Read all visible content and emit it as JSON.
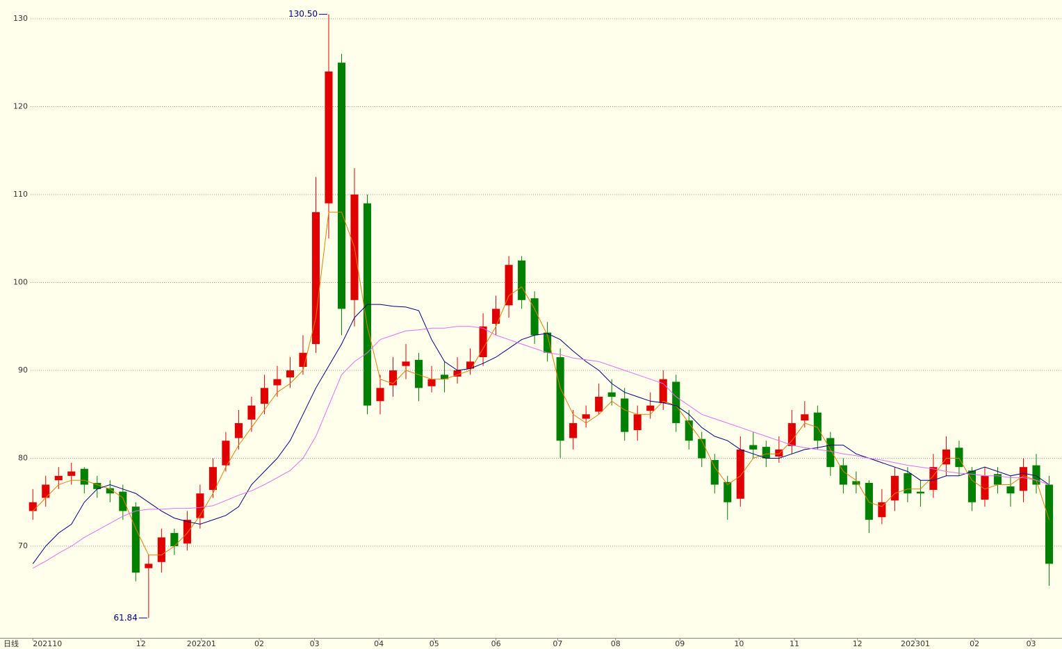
{
  "chart_data": {
    "type": "candlestick",
    "period_label": "日线",
    "xlim": [
      -0.5,
      80
    ],
    "ylim": [
      59.57,
      132.13
    ],
    "yticks": [
      70,
      80,
      90,
      100,
      110,
      120,
      130
    ],
    "grid": true,
    "up_color": "#e00000",
    "down_color": "#008000",
    "xticks": [
      {
        "value": 0,
        "label": "202110"
      },
      {
        "value": 8.4,
        "label": "12"
      },
      {
        "value": 13.1,
        "label": "202201"
      },
      {
        "value": 17.6,
        "label": "02"
      },
      {
        "value": 21.9,
        "label": "03"
      },
      {
        "value": 26.9,
        "label": "04"
      },
      {
        "value": 31.2,
        "label": "05"
      },
      {
        "value": 36,
        "label": "06"
      },
      {
        "value": 40.8,
        "label": "07"
      },
      {
        "value": 45.3,
        "label": "08"
      },
      {
        "value": 50.3,
        "label": "09"
      },
      {
        "value": 54.9,
        "label": "10"
      },
      {
        "value": 59.2,
        "label": "11"
      },
      {
        "value": 64.1,
        "label": "12"
      },
      {
        "value": 68.6,
        "label": "202301"
      },
      {
        "value": 73.2,
        "label": "02"
      },
      {
        "value": 77.6,
        "label": "03"
      }
    ],
    "open": [
      74,
      75.5,
      77.5,
      78,
      78.8,
      77.2,
      76.6,
      76.2,
      74.5,
      67.5,
      68.2,
      71.5,
      70.3,
      73.2,
      76.4,
      79.2,
      82.3,
      84.4,
      86.2,
      88.3,
      89.2,
      90.4,
      93,
      109,
      125,
      98,
      109,
      86.5,
      88.3,
      90.5,
      91.2,
      88.2,
      89.5,
      89.3,
      90.2,
      91.5,
      95.3,
      97.4,
      102.5,
      98.2,
      94.3,
      91.5,
      82.3,
      84.5,
      85.3,
      87.5,
      86.8,
      83.2,
      85.4,
      86.3,
      88.7,
      84.3,
      82.2,
      79.8,
      77.3,
      75.4,
      81.5,
      81.3,
      80.2,
      81.4,
      84.3,
      85.2,
      82.3,
      79.2,
      77.4,
      77.2,
      73.3,
      75.2,
      78.3,
      76.2,
      76.4,
      79.3,
      81.2,
      78.6,
      75.3,
      78.2,
      76.8,
      76.3,
      79.2,
      77
    ],
    "high": [
      76.5,
      78,
      79,
      79.5,
      79,
      78,
      77.5,
      77,
      75,
      69,
      72,
      72,
      74,
      77,
      80,
      83,
      85.5,
      87,
      89.5,
      90.5,
      91.5,
      94,
      112,
      130.5,
      126,
      113,
      110,
      89.5,
      91.5,
      93,
      92,
      90.5,
      91,
      91.5,
      92.5,
      96.5,
      98.5,
      103,
      103,
      99,
      95.5,
      92.5,
      85.5,
      86,
      88.5,
      89,
      88,
      86,
      87.5,
      90,
      89.5,
      85.5,
      83,
      80.5,
      78,
      82.5,
      83,
      82,
      82.5,
      85.5,
      86.5,
      86,
      83,
      80,
      78.5,
      77.5,
      76.5,
      79,
      79,
      77.5,
      80.5,
      82.5,
      82,
      79,
      79,
      79,
      78,
      80,
      80.5,
      78
    ],
    "low": [
      73,
      74.5,
      76.5,
      77,
      76,
      75.5,
      75,
      73,
      66,
      61.84,
      67,
      69,
      69.5,
      72,
      75.5,
      78.5,
      81,
      83,
      85,
      87,
      88,
      89.5,
      92,
      105,
      94,
      95,
      85,
      85,
      87,
      89,
      86.5,
      87.5,
      87.5,
      88.5,
      89.5,
      90.5,
      94,
      96,
      97,
      93,
      91,
      80,
      81,
      83.5,
      85,
      86,
      82,
      82,
      84.5,
      85.5,
      83,
      81,
      79,
      76,
      73,
      74.5,
      80,
      79,
      79.5,
      80.5,
      83.5,
      81,
      78,
      76,
      76,
      71.5,
      72.5,
      74,
      75,
      74.5,
      75.5,
      78,
      78,
      74,
      74.5,
      76,
      74.5,
      75,
      76,
      65.5
    ],
    "close": [
      75,
      77,
      78,
      78.5,
      77,
      76.5,
      76,
      74,
      67,
      68,
      71,
      70,
      73,
      76,
      79,
      82,
      84,
      86,
      88,
      89,
      90,
      92,
      108,
      124,
      97,
      110,
      86,
      88,
      90,
      91,
      88,
      89,
      89,
      90,
      91,
      95,
      97,
      102,
      98,
      94,
      92,
      82,
      84,
      85,
      87,
      87,
      83,
      85,
      86,
      89,
      84,
      82,
      80,
      77,
      75,
      81,
      81,
      80,
      81,
      84,
      85,
      82,
      79,
      77,
      77,
      73,
      75,
      78,
      76,
      76,
      79,
      81,
      79,
      75,
      78,
      77,
      76,
      79,
      77,
      68
    ],
    "lines": [
      {
        "color": "#e08000",
        "values": [
          74,
          75.5,
          77,
          77.5,
          77.5,
          77,
          76.5,
          75.5,
          72,
          69,
          69,
          70,
          71.5,
          73.5,
          76,
          79,
          81.5,
          83.5,
          85.5,
          87.5,
          88.5,
          90,
          96,
          108,
          108,
          104,
          95,
          89,
          88.5,
          90,
          89.5,
          89,
          89,
          89.5,
          90,
          92.5,
          95,
          98.5,
          99.5,
          97,
          94,
          88,
          85,
          84,
          85,
          86.5,
          85.5,
          85,
          85,
          86.5,
          86,
          84,
          82,
          79,
          77,
          78,
          80,
          80.5,
          80.5,
          82,
          84,
          83.5,
          81,
          78.5,
          77.5,
          75,
          74.5,
          76,
          76.5,
          76.5,
          78,
          80,
          80,
          77.5,
          76.5,
          77,
          77,
          78,
          77.5,
          73
        ]
      },
      {
        "color": "#000080",
        "values": [
          68,
          70,
          71.5,
          72.5,
          75,
          76.5,
          77,
          76.5,
          76,
          75,
          74,
          73.2,
          72.8,
          72.5,
          73,
          73.5,
          74.5,
          77,
          78.5,
          80,
          82,
          85,
          88,
          90.5,
          93,
          96,
          97.5,
          97.5,
          97.3,
          97.2,
          96.8,
          93.5,
          91,
          90,
          90.2,
          90.8,
          91.5,
          92.5,
          93.5,
          94,
          94.2,
          93.5,
          92.2,
          91,
          90,
          88.5,
          87.5,
          87,
          86.5,
          86.3,
          86,
          85,
          83.5,
          82.5,
          82,
          81,
          80.5,
          80,
          80,
          80.5,
          81,
          81.2,
          81.5,
          81.5,
          80.5,
          80,
          79.5,
          79,
          78.5,
          77.5,
          77.5,
          78,
          78,
          78.5,
          79,
          78.5,
          78,
          78.3,
          78,
          77
        ]
      },
      {
        "color": "#e070f0",
        "values": [
          67.5,
          68.3,
          69.2,
          70,
          71,
          71.8,
          72.6,
          73.4,
          74,
          74.2,
          74.2,
          74.3,
          74.3,
          74.4,
          74.6,
          75.2,
          75.8,
          76.3,
          77,
          77.8,
          78.6,
          80,
          82.5,
          86,
          89.5,
          91,
          92,
          93.5,
          94,
          94.5,
          94.6,
          94.8,
          94.8,
          95,
          95,
          94.8,
          94,
          93.5,
          93,
          92.5,
          92,
          91.8,
          91.4,
          91.2,
          91,
          90.5,
          90,
          89.5,
          89,
          88.5,
          87,
          86,
          85,
          84.5,
          84,
          83.5,
          83,
          82.5,
          82,
          81.5,
          81.2,
          81,
          80.8,
          80.5,
          80.3,
          80,
          79.8,
          79.5,
          79.2,
          79,
          78.8,
          78.5,
          78.3,
          78.2,
          78,
          78,
          77.8,
          77.8,
          77.5,
          77
        ]
      }
    ],
    "annotations": [
      {
        "value": 130.5,
        "label": "130.50"
      },
      {
        "value": 61.84,
        "label": "61.84"
      }
    ]
  }
}
